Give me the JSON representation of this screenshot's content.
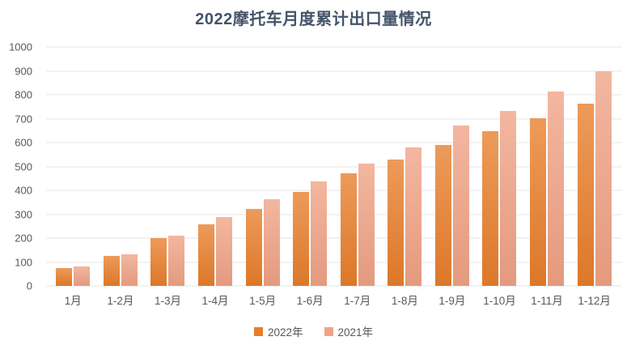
{
  "chart_data": {
    "type": "bar",
    "title": "2022摩托车月度累计出口量情况",
    "xlabel": "",
    "ylabel": "",
    "categories": [
      "1月",
      "1-2月",
      "1-3月",
      "1-4月",
      "1-5月",
      "1-6月",
      "1-7月",
      "1-8月",
      "1-9月",
      "1-10月",
      "1-11月",
      "1-12月"
    ],
    "series": [
      {
        "name": "2022年",
        "color": "#E87E2B",
        "values": [
          73,
          125,
          199,
          258,
          321,
          394,
          470,
          528,
          589,
          648,
          702,
          762
        ]
      },
      {
        "name": "2021年",
        "color": "#F0A285",
        "values": [
          81,
          131,
          209,
          287,
          362,
          439,
          511,
          581,
          670,
          732,
          813,
          897
        ]
      }
    ],
    "ylim": [
      0,
      1000
    ],
    "yticks": [
      0,
      100,
      200,
      300,
      400,
      500,
      600,
      700,
      800,
      900,
      1000
    ],
    "grid": true,
    "legend_position": "bottom"
  },
  "colors": {
    "title_text": "#44546A",
    "axis_text": "#595959",
    "gridline": "#E4E4E4",
    "background": "#FFFFFF"
  }
}
